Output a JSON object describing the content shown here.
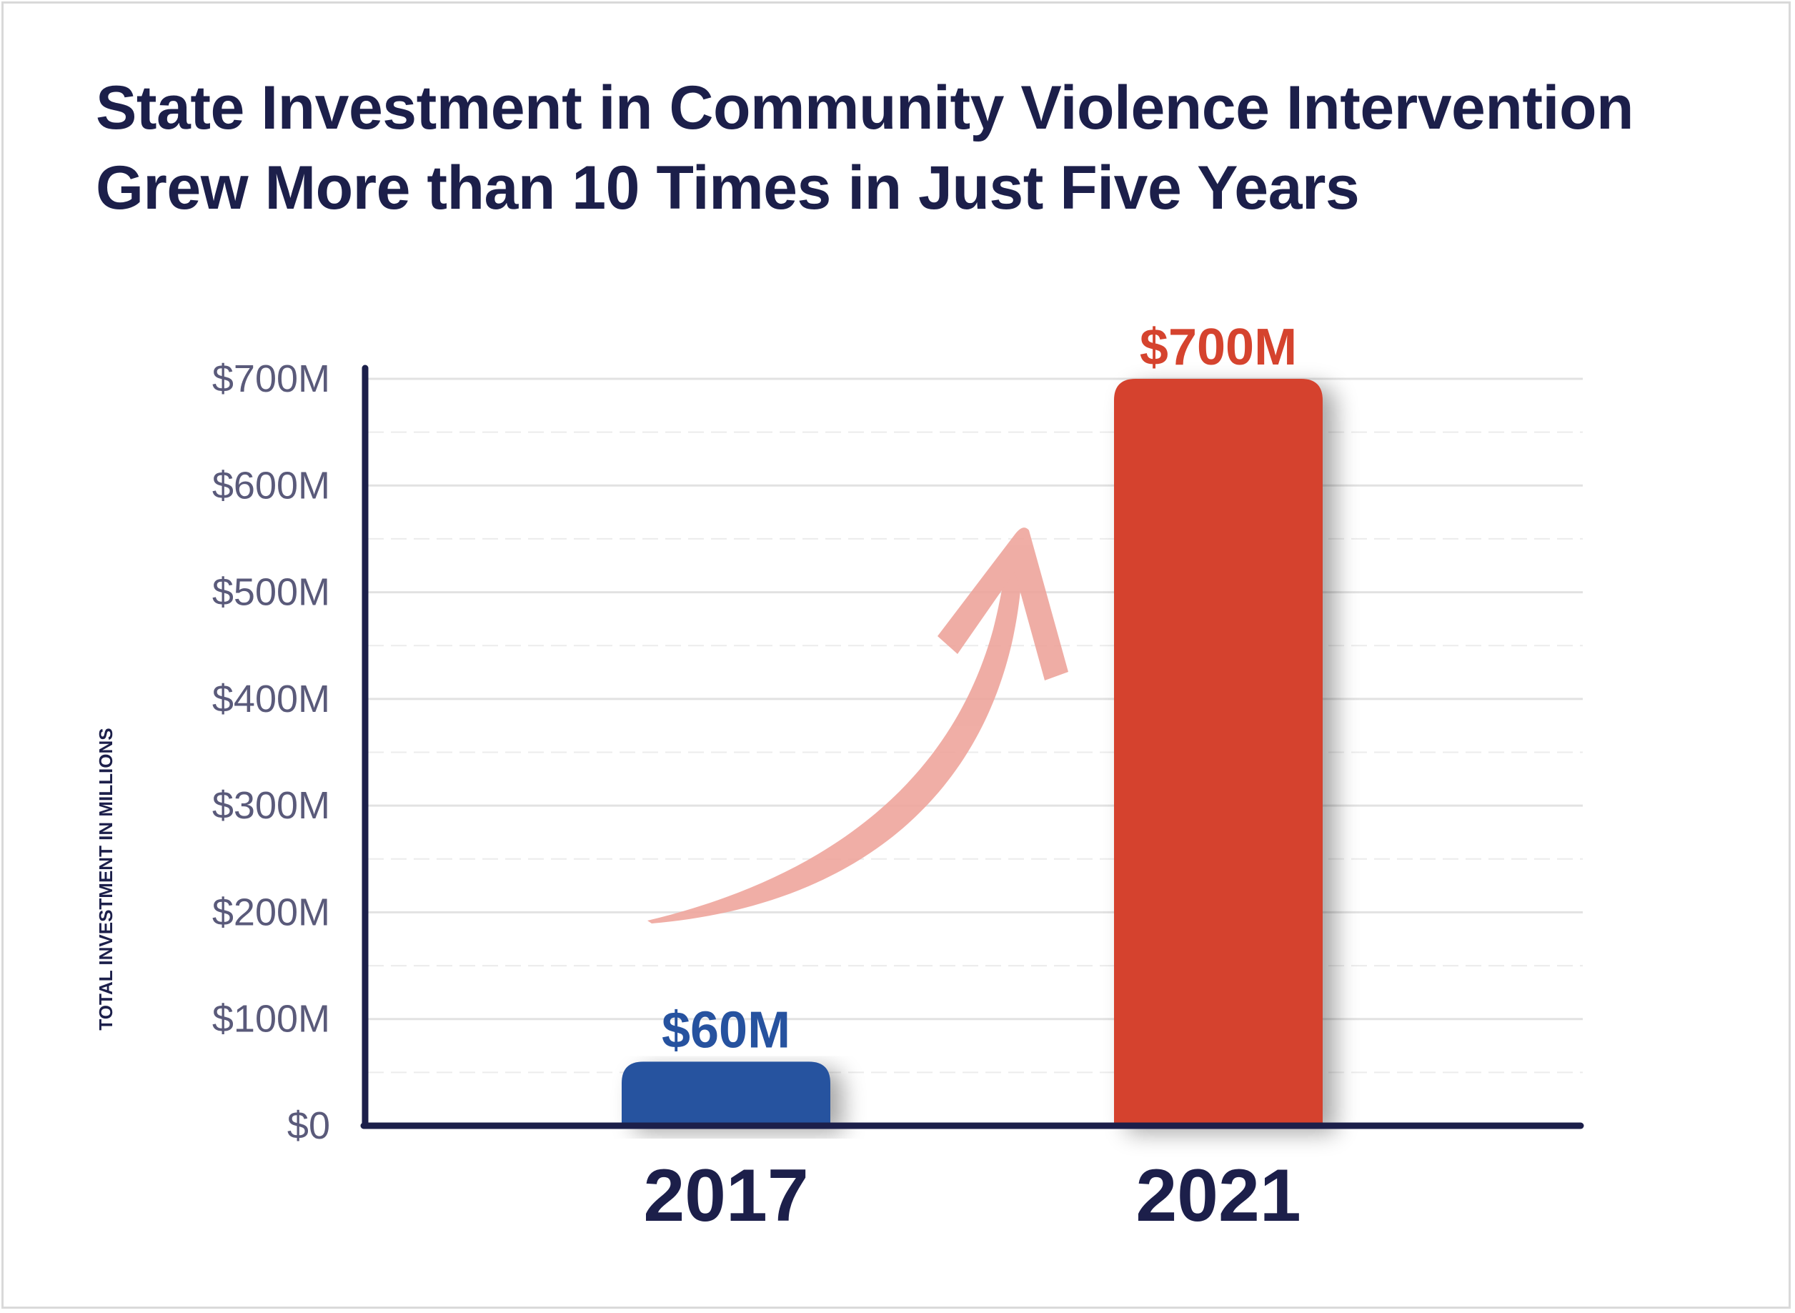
{
  "chart_data": {
    "type": "bar",
    "title_lines": [
      "State Investment in Community Violence Intervention",
      "Grew More than 10 Times in Just Five Years"
    ],
    "ylabel": "TOTAL INVESTMENT IN MILLIONS",
    "xlabel": "",
    "categories": [
      "2017",
      "2021"
    ],
    "values": [
      60,
      700
    ],
    "data_labels": [
      "$60M",
      "$700M"
    ],
    "bar_colors": [
      "#26529f",
      "#d5432e"
    ],
    "ylim": [
      0,
      700
    ],
    "yticks": [
      0,
      100,
      200,
      300,
      400,
      500,
      600,
      700
    ],
    "ytick_labels": [
      "$0",
      "$100M",
      "$200M",
      "$300M",
      "$400M",
      "$500M",
      "$600M",
      "$700M"
    ],
    "grid": true,
    "annotation": "upward-arrow-icon",
    "annotation_color": "#eea59c"
  }
}
